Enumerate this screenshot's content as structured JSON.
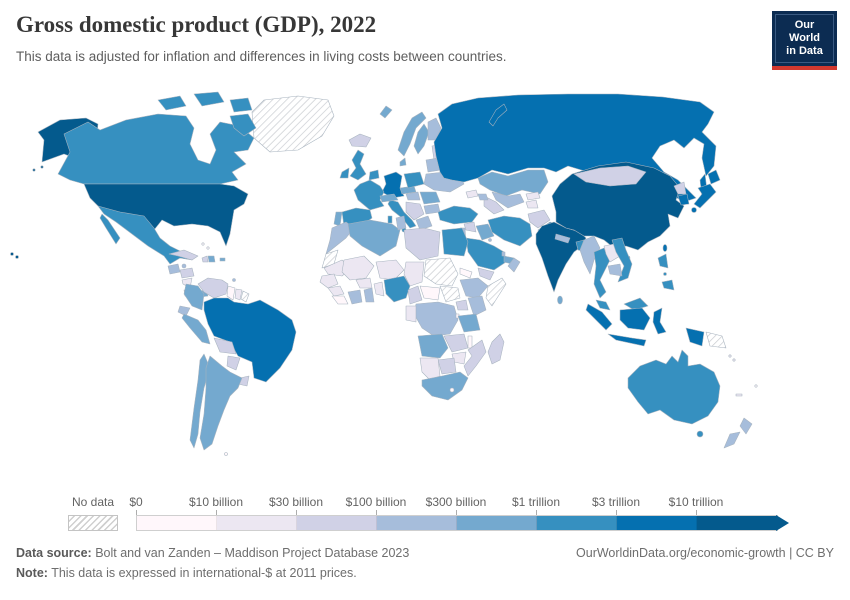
{
  "header": {
    "title": "Gross domestic product (GDP), 2022",
    "subtitle": "This data is adjusted for inflation and differences in living costs between countries.",
    "logo_line1": "Our World",
    "logo_line2": "in Data"
  },
  "legend": {
    "no_data_label": "No data",
    "tick_labels": [
      "$0",
      "$10 billion",
      "$30 billion",
      "$100 billion",
      "$300 billion",
      "$1 trillion",
      "$3 trillion",
      "$10 trillion"
    ]
  },
  "footer": {
    "source_label": "Data source:",
    "source_text": " Bolt and van Zanden – Maddison Project Database 2023",
    "note_label": "Note:",
    "note_text": " This data is expressed in international-$ at 2011 prices.",
    "right_text": "OurWorldinData.org/economic-growth | CC BY"
  },
  "chart_data": {
    "type": "choropleth",
    "title": "Gross domestic product (GDP), 2022",
    "year": "2022",
    "unit": "international-$ at 2011 prices",
    "legend_position": "bottom",
    "bucket_labels": [
      "$0–$10 billion",
      "$10–$30 billion",
      "$30–$100 billion",
      "$100–$300 billion",
      "$300 billion–$1 trillion",
      "$1–$3 trillion",
      "$3–$10 trillion",
      "over $10 trillion"
    ],
    "bucket_colors": [
      "#fff7fb",
      "#ece7f2",
      "#d0d1e6",
      "#a6bddb",
      "#74a9cf",
      "#3690c0",
      "#0570b0",
      "#045a8d"
    ],
    "no_data_color": "hatch",
    "map_border_color": "#a7b3bf",
    "country_buckets": {
      "united-states": 8,
      "canada": 6,
      "greenland": 0,
      "mexico": 6,
      "guatemala": 4,
      "honduras": 3,
      "nicaragua": 2,
      "costa-rica-panama": 5,
      "cuba": 3,
      "jamaica": 4,
      "haiti": 3,
      "dominican-republic": 5,
      "puerto-rico": 5,
      "bahamas": 1,
      "trinidad-and-tobago": 4,
      "venezuela": 3,
      "colombia": 5,
      "ecuador": 4,
      "guyana": 1,
      "suriname": 2,
      "french-guiana": 0,
      "peru": 5,
      "brazil": 7,
      "bolivia": 3,
      "paraguay": 3,
      "uruguay": 3,
      "chile": 5,
      "argentina": 5,
      "falkland-islands": 1,
      "iceland": 3,
      "norway": 5,
      "sweden": 5,
      "finland": 4,
      "denmark": 5,
      "united-kingdom": 6,
      "ireland": 6,
      "benelux": 6,
      "germany": 7,
      "france": 6,
      "spain": 6,
      "portugal": 5,
      "italy": 6,
      "switzerland-austria": 5,
      "czechia-slovakia": 5,
      "poland": 6,
      "baltic-states": 3,
      "belarus": 4,
      "ukraine": 4,
      "hungary": 4,
      "romania": 5,
      "balkans": 3,
      "bulgaria": 4,
      "greece": 4,
      "russia": 7,
      "kazakhstan": 5,
      "uzbekistan": 4,
      "turkmenistan": 3,
      "kyrgyzstan": 2,
      "tajikistan": 2,
      "georgia": 2,
      "azerbaijan": 4,
      "turkey": 6,
      "syria": 3,
      "israel-jordan": 4,
      "iraq": 5,
      "iran": 6,
      "afghanistan": 3,
      "pakistan": 6,
      "saudi-arabia": 6,
      "kuwait": 4,
      "qatar": 4,
      "united-arab-emirates": 5,
      "oman": 4,
      "yemen": 3,
      "india": 8,
      "nepal": 4,
      "bangladesh": 6,
      "sri-lanka": 5,
      "myanmar": 4,
      "thailand": 6,
      "laos": 2,
      "vietnam": 6,
      "cambodia": 4,
      "malaysia": 6,
      "indonesia": 7,
      "philippines": 6,
      "taiwan": 7,
      "china": 8,
      "mongolia": 3,
      "north-korea": 3,
      "south-korea": 7,
      "japan": 7,
      "papua-new-guinea": 0,
      "australia": 6,
      "new-zealand": 4,
      "new-caledonia": 2,
      "fiji": 1,
      "solomon-islands": 2,
      "morocco": 4,
      "western-sahara": 0,
      "algeria": 5,
      "tunisia": 4,
      "libya": 3,
      "egypt": 6,
      "mauritania": 2,
      "mali": 2,
      "niger": 2,
      "chad": 2,
      "sudan": 0,
      "south-sudan": 0,
      "eritrea": 1,
      "senegal": 2,
      "guinea": 2,
      "sierra-leone-liberia": 1,
      "cote-divoire": 4,
      "ghana": 4,
      "burkina-faso": 2,
      "togo-benin": 2,
      "nigeria": 6,
      "cameroon": 3,
      "central-african-republic": 1,
      "ethiopia": 4,
      "somalia": 0,
      "uganda": 3,
      "kenya": 4,
      "democratic-republic-of-congo": 4,
      "congo-gabon": 2,
      "rwanda-burundi": 1,
      "tanzania": 5,
      "angola": 5,
      "zambia": 3,
      "malawi": 1,
      "mozambique": 3,
      "zimbabwe": 2,
      "botswana": 3,
      "namibia": 2,
      "south-africa": 5,
      "lesotho": 1,
      "madagascar": 3
    }
  }
}
